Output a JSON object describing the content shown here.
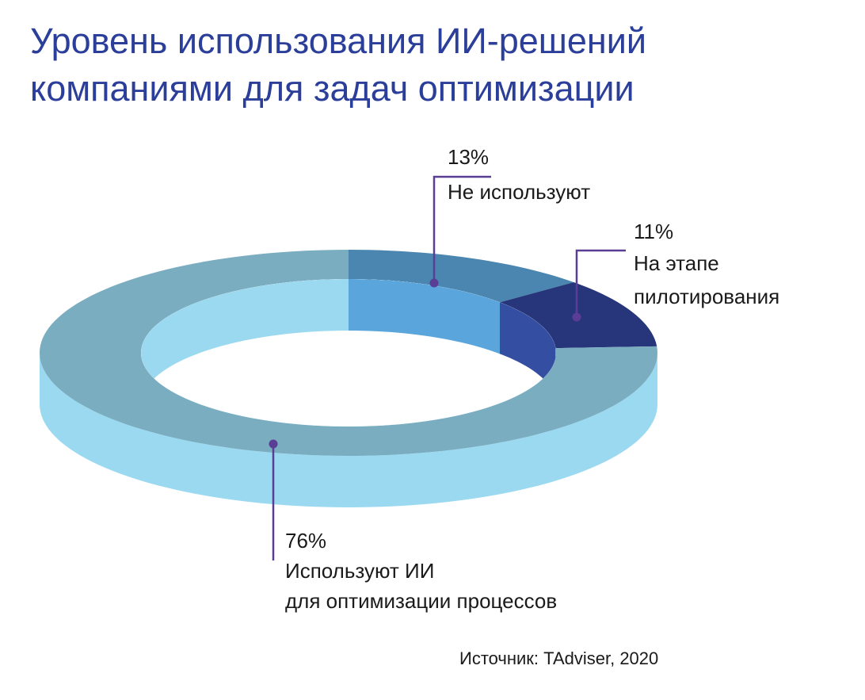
{
  "chart_data": {
    "type": "pie",
    "title": "Уровень использования ИИ-решений\nкомпаниями для задач оптимизации",
    "categories": [
      "Не используют",
      "На этапе\nпилотирования",
      "Используют ИИ\nдля оптимизации процессов"
    ],
    "values": [
      13,
      11,
      76
    ],
    "value_labels": [
      "13%",
      "11%",
      "76%"
    ],
    "colors": [
      "#4a86b0",
      "#27357b",
      "#7badc1"
    ],
    "side_colors": [
      "#5aa6dc",
      "#344ea1",
      "#9bd9f1"
    ],
    "source": "Источник: TAdviser, 2020"
  }
}
